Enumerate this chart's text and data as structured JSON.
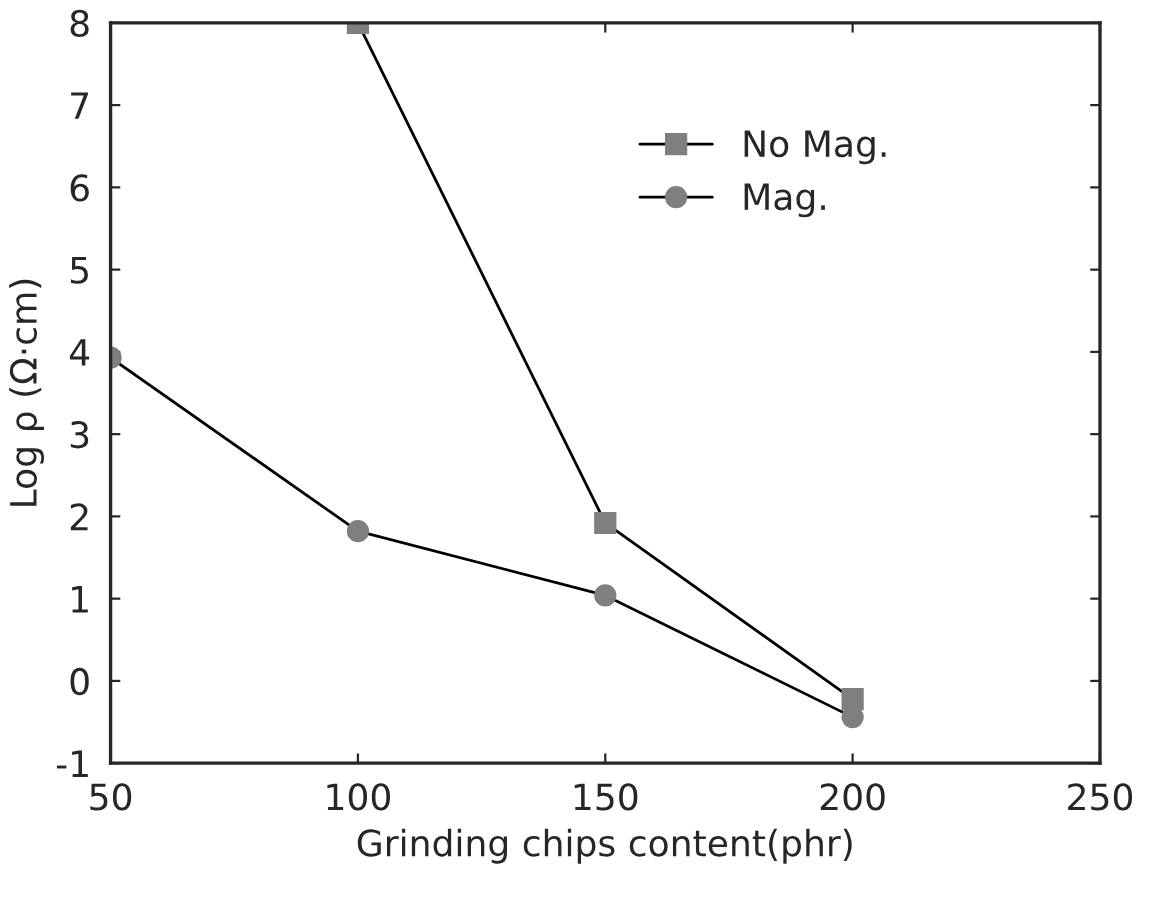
{
  "chart_data": {
    "type": "line",
    "xlabel": "Grinding chips content(phr)",
    "ylabel": "Log ρ (Ω·cm)",
    "xlim": [
      50,
      250
    ],
    "xticks": [
      50,
      100,
      150,
      200,
      250
    ],
    "ylim": [
      -1,
      8
    ],
    "yticks": [
      -1,
      0,
      1,
      2,
      3,
      4,
      5,
      6,
      7,
      8
    ],
    "grid": false,
    "legend": "top right",
    "series": [
      {
        "name": "No Mag.",
        "color": "#7f7f7f",
        "marker": "square",
        "x": [
          100,
          150,
          200
        ],
        "values": [
          8.0,
          1.92,
          -0.22
        ]
      },
      {
        "name": "Mag.",
        "color": "#7f7f7f",
        "marker": "circle",
        "x": [
          50,
          100,
          150,
          200
        ],
        "values": [
          3.93,
          1.82,
          1.04,
          -0.44
        ]
      }
    ]
  }
}
